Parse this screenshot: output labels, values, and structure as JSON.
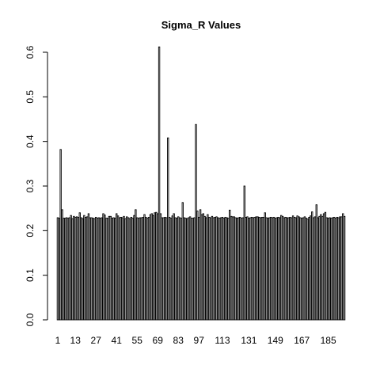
{
  "chart_data": {
    "type": "bar",
    "title": "Sigma_R Values",
    "xlabel": "",
    "ylabel": "",
    "ylim": [
      0,
      0.6
    ],
    "y_ticks": [
      "0.0",
      "0.1",
      "0.2",
      "0.3",
      "0.4",
      "0.5",
      "0.6"
    ],
    "x_tick_labels": [
      "1",
      "13",
      "27",
      "41",
      "55",
      "69",
      "83",
      "97",
      "113",
      "131",
      "149",
      "167",
      "185"
    ],
    "grid": false,
    "legend": "none",
    "bar_color": "#ffffff",
    "bar_stroke": "#000000",
    "values": [
      0.229,
      0.228,
      0.382,
      0.247,
      0.228,
      0.228,
      0.229,
      0.228,
      0.229,
      0.234,
      0.227,
      0.232,
      0.23,
      0.231,
      0.23,
      0.24,
      0.229,
      0.227,
      0.234,
      0.23,
      0.231,
      0.238,
      0.229,
      0.229,
      0.228,
      0.227,
      0.23,
      0.228,
      0.229,
      0.228,
      0.229,
      0.238,
      0.235,
      0.228,
      0.228,
      0.232,
      0.232,
      0.228,
      0.229,
      0.228,
      0.238,
      0.233,
      0.229,
      0.23,
      0.229,
      0.232,
      0.227,
      0.231,
      0.229,
      0.227,
      0.23,
      0.228,
      0.234,
      0.247,
      0.229,
      0.228,
      0.229,
      0.229,
      0.23,
      0.236,
      0.23,
      0.228,
      0.23,
      0.236,
      0.238,
      0.234,
      0.24,
      0.241,
      0.238,
      0.612,
      0.238,
      0.229,
      0.229,
      0.23,
      0.229,
      0.408,
      0.23,
      0.228,
      0.233,
      0.238,
      0.229,
      0.228,
      0.231,
      0.229,
      0.228,
      0.263,
      0.229,
      0.228,
      0.227,
      0.229,
      0.231,
      0.228,
      0.228,
      0.229,
      0.438,
      0.244,
      0.23,
      0.247,
      0.236,
      0.238,
      0.232,
      0.229,
      0.236,
      0.23,
      0.229,
      0.232,
      0.229,
      0.23,
      0.231,
      0.229,
      0.228,
      0.229,
      0.23,
      0.228,
      0.23,
      0.229,
      0.228,
      0.246,
      0.232,
      0.231,
      0.231,
      0.229,
      0.228,
      0.229,
      0.23,
      0.228,
      0.229,
      0.3,
      0.23,
      0.231,
      0.228,
      0.229,
      0.23,
      0.229,
      0.23,
      0.231,
      0.231,
      0.23,
      0.229,
      0.23,
      0.23,
      0.24,
      0.229,
      0.228,
      0.229,
      0.23,
      0.229,
      0.23,
      0.228,
      0.229,
      0.23,
      0.229,
      0.234,
      0.232,
      0.229,
      0.23,
      0.229,
      0.229,
      0.23,
      0.229,
      0.233,
      0.23,
      0.229,
      0.233,
      0.231,
      0.229,
      0.228,
      0.229,
      0.231,
      0.228,
      0.226,
      0.23,
      0.233,
      0.242,
      0.229,
      0.231,
      0.258,
      0.229,
      0.232,
      0.236,
      0.232,
      0.238,
      0.241,
      0.229,
      0.228,
      0.229,
      0.228,
      0.229,
      0.23,
      0.228,
      0.23,
      0.229,
      0.231,
      0.231,
      0.238,
      0.232
    ]
  }
}
